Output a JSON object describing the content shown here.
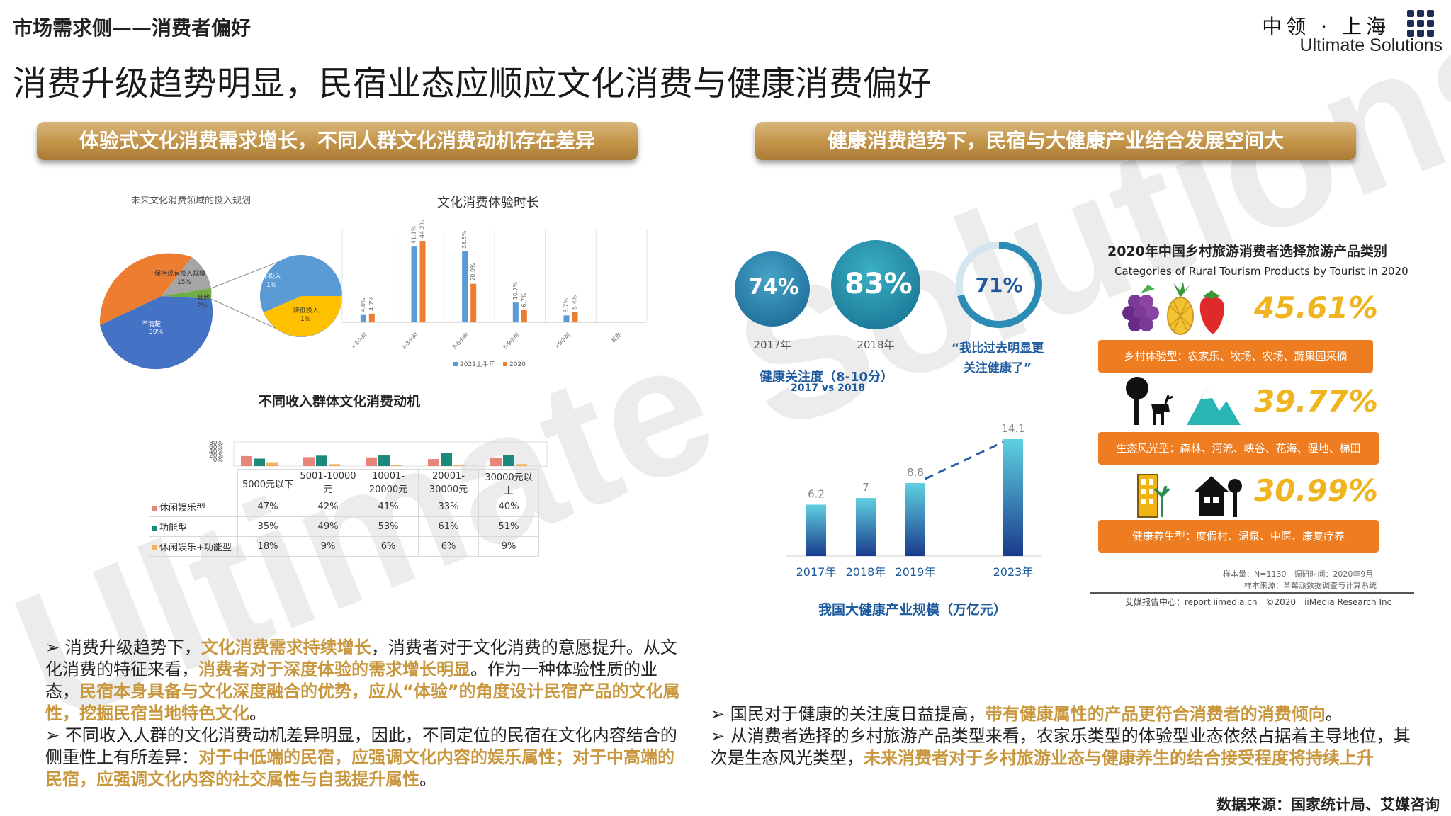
{
  "header": {
    "section": "市场需求侧——消费者偏好",
    "title": "消费升级趋势明显，民宿业态应顺应文化消费与健康消费偏好",
    "logo_cn": "中领 · 上海",
    "logo_en": "Ultimate Solutions"
  },
  "watermark": "Ultimate Solutions",
  "left_banner": "体验式文化消费需求增长，不同人群文化消费动机存在差异",
  "right_banner": "健康消费趋势下，民宿与大健康产业结合发展空间大",
  "pie": {
    "title": "未来文化消费领域的投入规划",
    "labels": [
      {
        "text": "增加投入",
        "value": "50%"
      },
      {
        "text": "保持现有投入规模",
        "value": "15%"
      },
      {
        "text": "其他",
        "value": "2%"
      },
      {
        "text": "不清楚",
        "value": "30%"
      },
      {
        "text": "不投入",
        "value": "1%"
      },
      {
        "text": "降低投入",
        "value": "1%"
      }
    ]
  },
  "chart_data": [
    {
      "type": "bar",
      "title": "文化消费体验时长",
      "categories": [
        "<1小时",
        "1-3小时",
        "3-6小时",
        "6-9小时",
        ">9小时",
        "其他"
      ],
      "series": [
        {
          "name": "2021上半年",
          "values": [
            4.0,
            41.1,
            38.5,
            10.7,
            3.7,
            0
          ],
          "color": "#5b9bd5"
        },
        {
          "name": "2020",
          "values": [
            4.7,
            44.2,
            20.9,
            6.7,
            5.4,
            0
          ],
          "color": "#ed7d31"
        }
      ],
      "ylim": [
        0,
        50
      ]
    },
    {
      "type": "bar",
      "title": "我国大健康产业规模（万亿元）",
      "categories": [
        "2017年",
        "2018年",
        "2019年",
        "2023年"
      ],
      "values": [
        6.2,
        7,
        8.8,
        14.1
      ],
      "ylim": [
        0,
        15
      ]
    },
    {
      "type": "table",
      "title": "不同收入群体文化消费动机",
      "columns": [
        "5000元以下",
        "5001-10000元",
        "10001-20000元",
        "20001-30000元",
        "30000元以上"
      ],
      "rows": [
        {
          "name": "休闲娱乐型",
          "color": "#e8857a",
          "values": [
            "47%",
            "42%",
            "41%",
            "33%",
            "40%"
          ]
        },
        {
          "name": "功能型",
          "color": "#1a8a7a",
          "values": [
            "35%",
            "49%",
            "53%",
            "61%",
            "51%"
          ]
        },
        {
          "name": "休闲娱乐+功能型",
          "color": "#f2b15a",
          "values": [
            "18%",
            "9%",
            "6%",
            "6%",
            "9%"
          ]
        }
      ],
      "ytick_labels": [
        "80%",
        "60%",
        "40%",
        "20%",
        "0%"
      ]
    }
  ],
  "health_circles": {
    "c2017": {
      "pct": "74%",
      "year": "2017年"
    },
    "c2018": {
      "pct": "83%",
      "year": "2018年"
    },
    "c71": {
      "pct": "71%",
      "label": "“我比过去明显更关注健康了”"
    },
    "caption": "健康关注度（8-10分）",
    "sub": "2017 vs 2018"
  },
  "tourism": {
    "title_cn": "2020年中国乡村旅游消费者选择旅游产品类别",
    "title_en": "Categories of Rural Tourism Products by Tourist in 2020",
    "items": [
      {
        "pct": "45.61%",
        "label": "乡村体验型：农家乐、牧场、农场、蔬果园采摘"
      },
      {
        "pct": "39.77%",
        "label": "生态风光型：森林、河流、峡谷、花海、湿地、梯田"
      },
      {
        "pct": "30.99%",
        "label": "健康养生型：度假村、温泉、中医、康复疗养"
      }
    ],
    "sample": "样本量：N=1130　调研时间：2020年9月",
    "source": "样本来源：草莓派数据调查与计算系统",
    "footer": "艾媒报告中心：report.iimedia.cn　©2020　iiMedia Research Inc"
  },
  "left_bullets": [
    {
      "parts": [
        {
          "t": "消费升级趋势下，",
          "hl": false
        },
        {
          "t": "文化消费需求持续增长",
          "hl": true
        },
        {
          "t": "，消费者对于文化消费的意愿提升。从文化消费的特征来看，",
          "hl": false
        },
        {
          "t": "消费者对于深度体验的需求增长明显",
          "hl": true
        },
        {
          "t": "。作为一种体验性质的业态，",
          "hl": false
        },
        {
          "t": "民宿本身具备与文化深度融合的优势，应从“体验”的角度设计民宿产品的文化属性，挖掘民宿当地特色文化",
          "hl": true
        },
        {
          "t": "。",
          "hl": false
        }
      ]
    },
    {
      "parts": [
        {
          "t": "不同收入人群的文化消费动机差异明显，因此，不同定位的民宿在文化内容结合的侧重性上有所差异：",
          "hl": false
        },
        {
          "t": "对于中低端的民宿，应强调文化内容的娱乐属性；对于中高端的民宿，应强调文化内容的社交属性与自我提升属性",
          "hl": true
        },
        {
          "t": "。",
          "hl": false
        }
      ]
    }
  ],
  "right_bullets": [
    {
      "parts": [
        {
          "t": "国民对于健康的关注度日益提高，",
          "hl": false
        },
        {
          "t": "带有健康属性的产品更符合消费者的消费倾向",
          "hl": true
        },
        {
          "t": "。",
          "hl": false
        }
      ]
    },
    {
      "parts": [
        {
          "t": "从消费者选择的乡村旅游产品类型来看，农家乐类型的体验型业态依然占据着主导地位，其次是生态风光类型，",
          "hl": false
        },
        {
          "t": "未来消费者对于乡村旅游业态与健康养生的结合接受程度将持续上升",
          "hl": true
        }
      ]
    }
  ],
  "data_source": "数据来源：国家统计局、艾媒咨询"
}
